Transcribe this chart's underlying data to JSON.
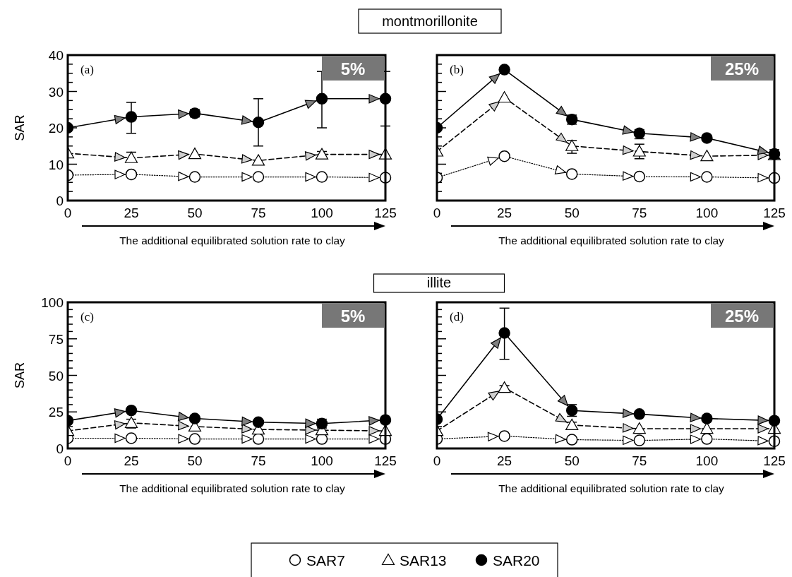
{
  "chart_data": [
    {
      "type": "line",
      "title": "montmorillonite",
      "ylabel": "SAR",
      "xlabel": "The additional equilibrated solution rate to clay",
      "annotations": [
        "(a)",
        "5%"
      ],
      "x": [
        0,
        25,
        50,
        75,
        100,
        125
      ],
      "xlim": [
        0,
        125
      ],
      "xticks": [
        0,
        25,
        50,
        75,
        100,
        125
      ],
      "ylim": [
        0,
        40
      ],
      "yticks": [
        0,
        {
          "value": 2.5,
          "label": null
        },
        {
          "value": 5,
          "label": null
        },
        {
          "value": 7.5,
          "label": null
        },
        10,
        {
          "value": 12.5,
          "label": null
        },
        {
          "value": 15,
          "label": null
        },
        {
          "value": 17.5,
          "label": null
        },
        20,
        {
          "value": 22.5,
          "label": null
        },
        {
          "value": 25,
          "label": null
        },
        {
          "value": 27.5,
          "label": null
        },
        30,
        {
          "value": 32.5,
          "label": null
        },
        {
          "value": 35,
          "label": null
        },
        {
          "value": 37.5,
          "label": null
        },
        40
      ],
      "legend": "bottom",
      "series": [
        {
          "name": "SAR7",
          "color": "#ffffff",
          "marker": "circle",
          "line_style": "dotted",
          "values": [
            7,
            7.2,
            6.5,
            6.5,
            6.5,
            6.3
          ]
        },
        {
          "name": "SAR13",
          "color": "#ffffff",
          "marker": "triangle",
          "line_style": "dashed",
          "values": [
            13,
            11.7,
            12.8,
            11,
            12.7,
            12.7
          ],
          "errors": [
            null,
            [
              11,
              13.3
            ],
            null,
            null,
            [
              12,
              13.5
            ],
            null
          ]
        },
        {
          "name": "SAR20",
          "color": "#000000",
          "marker": "circle",
          "line_style": "solid",
          "values": [
            20,
            23,
            24,
            21.5,
            28,
            28
          ],
          "errors": [
            null,
            [
              18.5,
              27
            ],
            [
              23,
              25
            ],
            [
              15,
              28
            ],
            [
              20,
              35.5
            ],
            [
              20.5,
              35.5
            ]
          ]
        }
      ]
    },
    {
      "type": "line",
      "xlabel": "The additional equilibrated solution rate to clay",
      "annotations": [
        "(b)",
        "25%"
      ],
      "x": [
        0,
        25,
        50,
        75,
        100,
        125
      ],
      "xlim": [
        0,
        125
      ],
      "xticks": [
        0,
        25,
        50,
        75,
        100,
        125
      ],
      "ylim": [
        0,
        40
      ],
      "yticks": [
        0,
        {
          "value": 2.5,
          "label": null
        },
        {
          "value": 5,
          "label": null
        },
        {
          "value": 7.5,
          "label": null
        },
        10,
        {
          "value": 12.5,
          "label": null
        },
        {
          "value": 15,
          "label": null
        },
        {
          "value": 17.5,
          "label": null
        },
        20,
        {
          "value": 22.5,
          "label": null
        },
        {
          "value": 25,
          "label": null
        },
        {
          "value": 27.5,
          "label": null
        },
        30,
        {
          "value": 32.5,
          "label": null
        },
        {
          "value": 35,
          "label": null
        },
        {
          "value": 37.5,
          "label": null
        },
        40
      ],
      "tick_labels": "x",
      "series": [
        {
          "color": "#ffffff",
          "marker": "circle",
          "line_style": "dotted",
          "values": [
            6.3,
            12.2,
            7.3,
            6.6,
            6.5,
            6.2
          ]
        },
        {
          "color": "#ffffff",
          "marker": "triangle",
          "line_style": "dashed",
          "values": [
            13.5,
            28.3,
            15,
            13.5,
            12.2,
            12.5
          ],
          "errors": [
            null,
            null,
            [
              13,
              16.5
            ],
            [
              11.5,
              15.5
            ],
            null,
            null
          ]
        },
        {
          "color": "#000000",
          "marker": "circle",
          "line_style": "solid",
          "values": [
            20,
            36,
            22.3,
            18.5,
            17.2,
            12.8
          ],
          "errors": [
            null,
            null,
            [
              21,
              23.5
            ],
            [
              17,
              19.5
            ],
            null,
            [
              11.5,
              14
            ]
          ]
        }
      ]
    },
    {
      "type": "line",
      "ylabel": "SAR",
      "xlabel": "The additional equilibrated solution rate to clay",
      "annotations": [
        "(c)",
        "5%"
      ],
      "x": [
        0,
        25,
        50,
        75,
        100,
        125
      ],
      "xlim": [
        0,
        125
      ],
      "xticks": [
        0,
        25,
        50,
        75,
        100,
        125
      ],
      "ylim": [
        0,
        100
      ],
      "yticks": [
        0,
        {
          "value": 5,
          "label": null
        },
        {
          "value": 10,
          "label": null
        },
        {
          "value": 15,
          "label": null
        },
        {
          "value": 20,
          "label": null
        },
        25,
        {
          "value": 30,
          "label": null
        },
        {
          "value": 35,
          "label": null
        },
        {
          "value": 40,
          "label": null
        },
        {
          "value": 45,
          "label": null
        },
        50,
        {
          "value": 55,
          "label": null
        },
        {
          "value": 60,
          "label": null
        },
        {
          "value": 65,
          "label": null
        },
        {
          "value": 70,
          "label": null
        },
        75,
        {
          "value": 80,
          "label": null
        },
        {
          "value": 85,
          "label": null
        },
        {
          "value": 90,
          "label": null
        },
        {
          "value": 95,
          "label": null
        },
        100
      ],
      "series": [
        {
          "color": "#ffffff",
          "marker": "circle",
          "line_style": "dotted",
          "values": [
            7,
            7,
            6.5,
            6.5,
            6.5,
            6.5
          ]
        },
        {
          "color": "#ffffff",
          "marker": "triangle",
          "line_style": "dashed",
          "values": [
            12,
            17.5,
            15,
            13,
            12.5,
            12
          ],
          "errors": [
            null,
            [
              14,
              20
            ],
            null,
            null,
            null,
            null
          ]
        },
        {
          "color": "#000000",
          "marker": "circle",
          "line_style": "solid",
          "values": [
            19,
            26,
            20.5,
            18,
            17,
            19.5
          ],
          "errors": [
            null,
            null,
            null,
            null,
            [
              14,
              20
            ],
            null
          ]
        }
      ]
    },
    {
      "type": "line",
      "title": "illite",
      "xlabel": "The additional equilibrated solution rate to clay",
      "annotations": [
        "(d)",
        "25%"
      ],
      "x": [
        0,
        25,
        50,
        75,
        100,
        125
      ],
      "xlim": [
        0,
        125
      ],
      "xticks": [
        0,
        25,
        50,
        75,
        100,
        125
      ],
      "ylim": [
        0,
        100
      ],
      "yticks": [
        0,
        {
          "value": 5,
          "label": null
        },
        {
          "value": 10,
          "label": null
        },
        {
          "value": 15,
          "label": null
        },
        {
          "value": 20,
          "label": null
        },
        25,
        {
          "value": 30,
          "label": null
        },
        {
          "value": 35,
          "label": null
        },
        {
          "value": 40,
          "label": null
        },
        {
          "value": 45,
          "label": null
        },
        50,
        {
          "value": 55,
          "label": null
        },
        {
          "value": 60,
          "label": null
        },
        {
          "value": 65,
          "label": null
        },
        {
          "value": 70,
          "label": null
        },
        75,
        {
          "value": 80,
          "label": null
        },
        {
          "value": 85,
          "label": null
        },
        {
          "value": 90,
          "label": null
        },
        {
          "value": 95,
          "label": null
        },
        100
      ],
      "tick_labels": "x",
      "series": [
        {
          "color": "#ffffff",
          "marker": "circle",
          "line_style": "dotted",
          "values": [
            6.5,
            8.5,
            6,
            5.5,
            6.5,
            5
          ]
        },
        {
          "color": "#ffffff",
          "marker": "triangle",
          "line_style": "dashed",
          "values": [
            12,
            41.5,
            16,
            13.5,
            13.5,
            13.5
          ],
          "errors": [
            null,
            [
              40,
              43
            ],
            [
              14,
              18
            ],
            null,
            null,
            null
          ]
        },
        {
          "color": "#000000",
          "marker": "circle",
          "line_style": "solid",
          "values": [
            20,
            79,
            26,
            23.5,
            20.5,
            19
          ],
          "errors": [
            null,
            [
              61,
              96
            ],
            [
              22,
              30
            ],
            null,
            null,
            null
          ]
        }
      ]
    }
  ]
}
